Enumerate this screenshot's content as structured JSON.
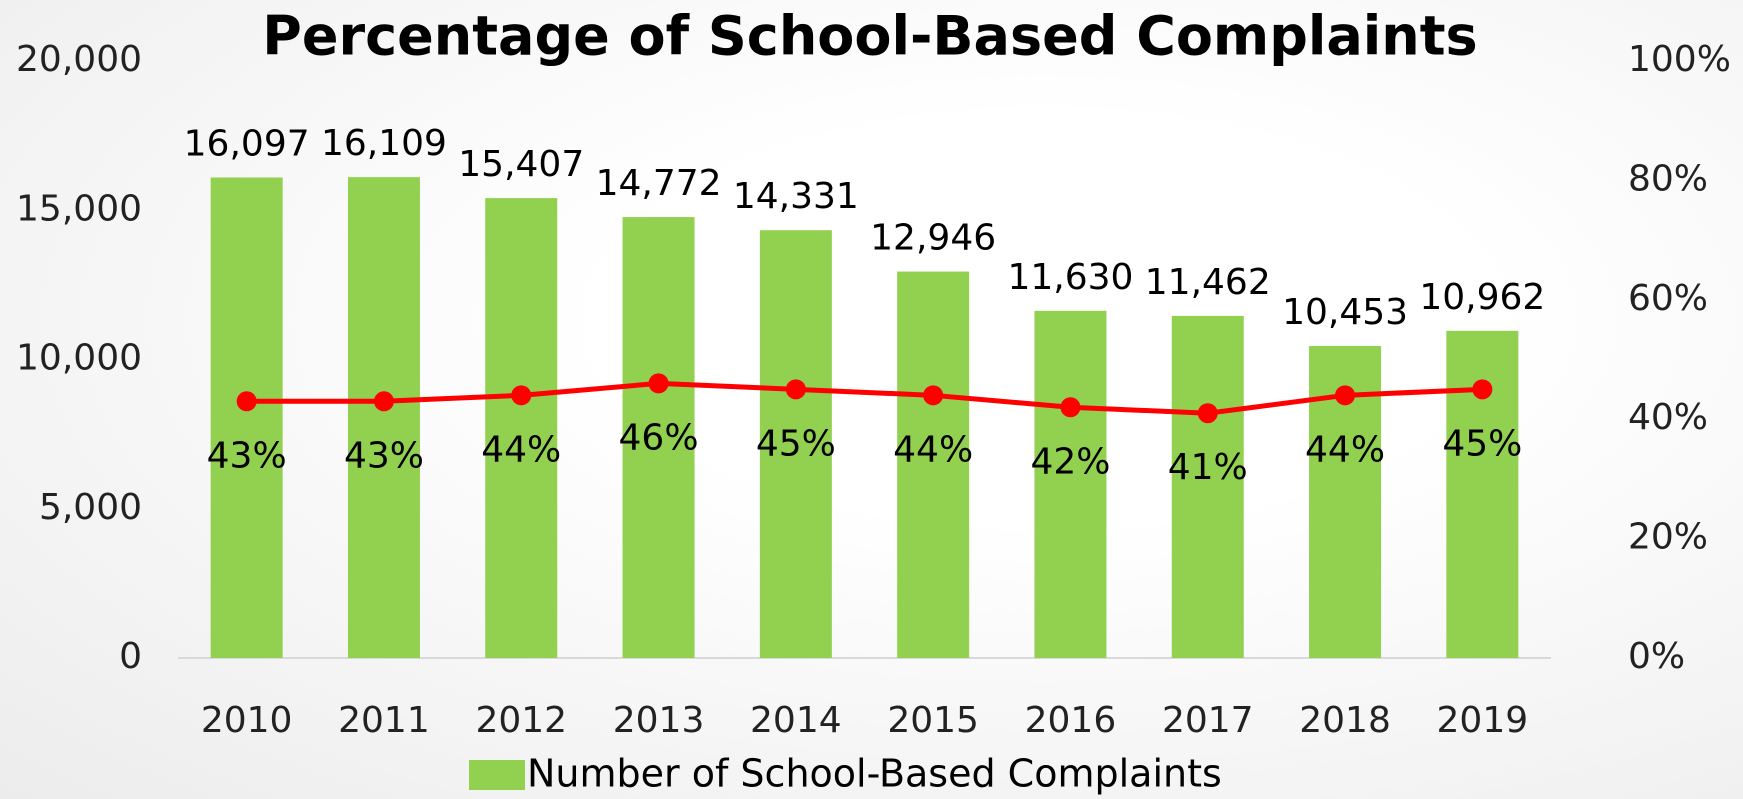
{
  "chart_data": {
    "type": "bar",
    "title": "Percentage of School-Based Complaints",
    "categories": [
      "2010",
      "2011",
      "2012",
      "2013",
      "2014",
      "2015",
      "2016",
      "2017",
      "2018",
      "2019"
    ],
    "series": [
      {
        "name": "Number of School-Based Complaints",
        "type": "bar",
        "color": "#92d050",
        "values": [
          16097,
          16109,
          15407,
          14772,
          14331,
          12946,
          11630,
          11462,
          10453,
          10962
        ],
        "value_labels": [
          "16,097",
          "16,109",
          "15,407",
          "14,772",
          "14,331",
          "12,946",
          "11,630",
          "11,462",
          "10,453",
          "10,962"
        ]
      },
      {
        "type": "line",
        "axis": "y2",
        "color": "#ff0000",
        "values": [
          43,
          43,
          44,
          46,
          45,
          44,
          42,
          41,
          44,
          45
        ],
        "value_labels": [
          "43%",
          "43%",
          "44%",
          "46%",
          "45%",
          "44%",
          "42%",
          "41%",
          "44%",
          "45%"
        ]
      }
    ],
    "ylim": [
      0,
      20000
    ],
    "yticks": [
      0,
      {
        "value": 5000,
        "label": "5,000"
      },
      {
        "value": 10000,
        "label": "10,000"
      },
      {
        "value": 15000,
        "label": "15,000"
      },
      {
        "value": 20000,
        "label": "20,000"
      }
    ],
    "y2lim": [
      0,
      100
    ],
    "y2ticks": [
      {
        "value": 0,
        "label": "0%"
      },
      {
        "value": 20,
        "label": "20%"
      },
      {
        "value": 40,
        "label": "40%"
      },
      {
        "value": 60,
        "label": "60%"
      },
      {
        "value": 80,
        "label": "80%"
      },
      {
        "value": 100,
        "label": "100%"
      }
    ],
    "legend": "bottom"
  }
}
